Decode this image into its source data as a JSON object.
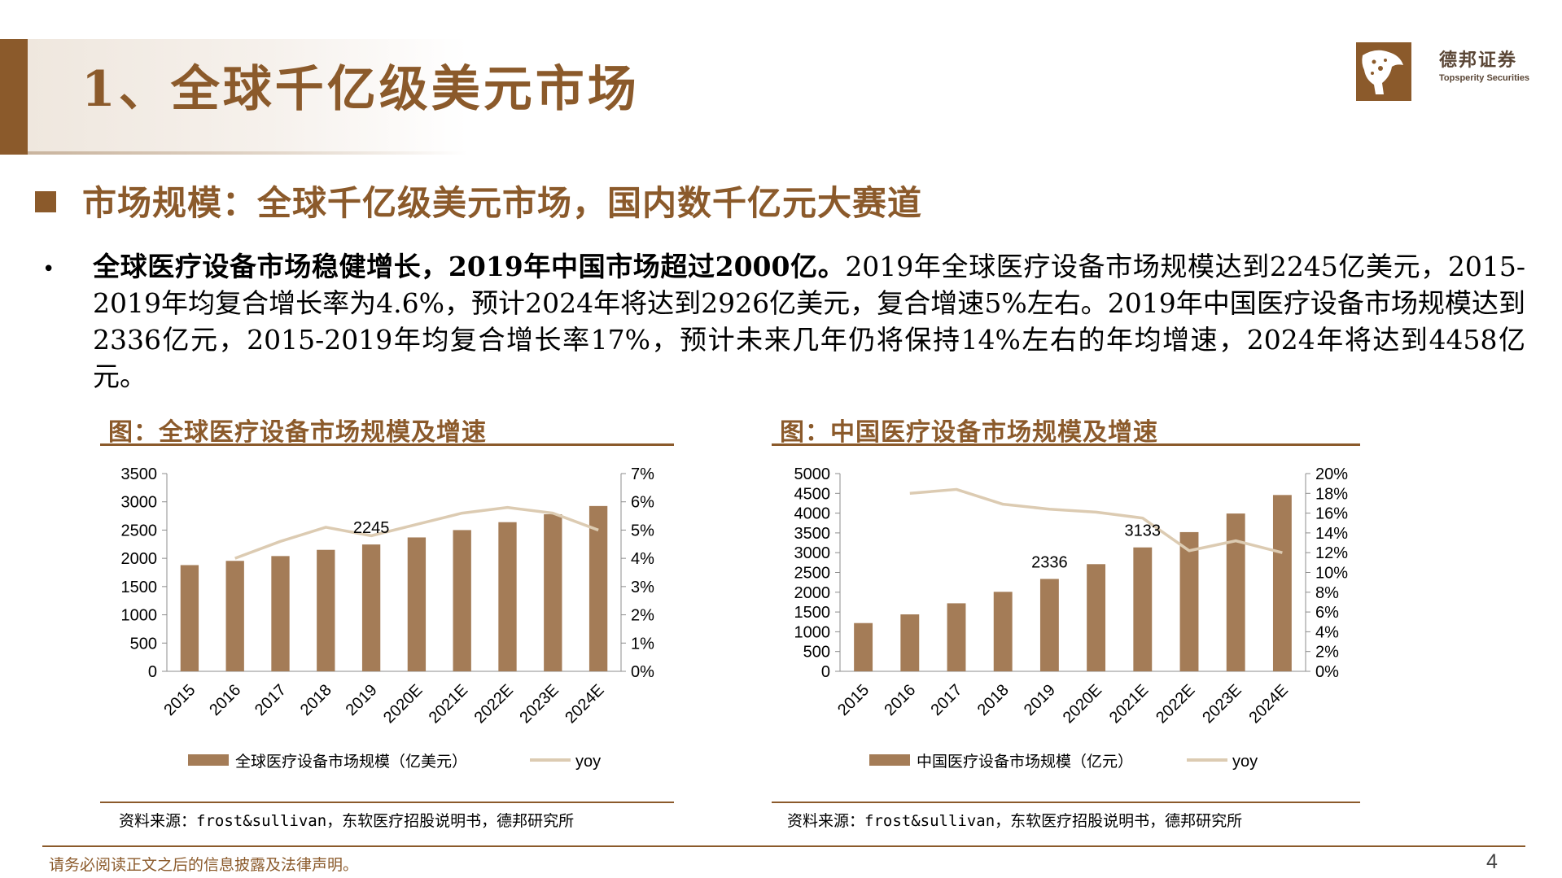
{
  "header": {
    "title": "1、全球千亿级美元市场",
    "logo_cn": "德邦证券",
    "logo_en": "Topsperity Securities"
  },
  "section": {
    "title": "市场规模：全球千亿级美元市场，国内数千亿元大赛道"
  },
  "bullet": {
    "marker": "•",
    "bold": "全球医疗设备市场稳健增长，2019年中国市场超过2000亿。",
    "text": "2019年全球医疗设备市场规模达到2245亿美元，2015-2019年均复合增长率为4.6%，预计2024年将达到2926亿美元，复合增速5%左右。2019年中国医疗设备市场规模达到2336亿元，2015-2019年均复合增长率17%，预计未来几年仍将保持14%左右的年均增速，2024年将达到4458亿元。"
  },
  "chart_data": [
    {
      "type": "bar",
      "title": "图：全球医疗设备市场规模及增速",
      "categories": [
        "2015",
        "2016",
        "2017",
        "2018",
        "2019",
        "2020E",
        "2021E",
        "2022E",
        "2023E",
        "2024E"
      ],
      "series": [
        {
          "name": "全球医疗设备市场规模（亿美元）",
          "type": "bar",
          "axis": "left",
          "values": [
            1880,
            1955,
            2040,
            2150,
            2245,
            2370,
            2500,
            2640,
            2780,
            2926
          ]
        },
        {
          "name": "yoy",
          "type": "line",
          "axis": "right",
          "values": [
            null,
            4.0,
            4.6,
            5.1,
            4.8,
            5.2,
            5.6,
            5.8,
            5.6,
            5.0
          ]
        }
      ],
      "ylim": [
        0,
        3500
      ],
      "yticks": [
        0,
        500,
        1000,
        1500,
        2000,
        2500,
        3000,
        3500
      ],
      "y2lim": [
        0,
        7
      ],
      "y2ticks": [
        "0%",
        "1%",
        "2%",
        "3%",
        "4%",
        "5%",
        "6%",
        "7%"
      ],
      "data_labels": [
        {
          "index": 4,
          "text": "2245"
        }
      ],
      "source": "资料来源：frost&sullivan，东软医疗招股说明书，德邦研究所",
      "legend": "bottom"
    },
    {
      "type": "bar",
      "title": "图：中国医疗设备市场规模及增速",
      "categories": [
        "2015",
        "2016",
        "2017",
        "2018",
        "2019",
        "2020E",
        "2021E",
        "2022E",
        "2023E",
        "2024E"
      ],
      "series": [
        {
          "name": "中国医疗设备市场规模（亿元）",
          "type": "bar",
          "axis": "left",
          "values": [
            1220,
            1440,
            1720,
            2010,
            2336,
            2710,
            3133,
            3520,
            3990,
            4458
          ]
        },
        {
          "name": "yoy",
          "type": "line",
          "axis": "right",
          "values": [
            null,
            18.0,
            18.4,
            16.9,
            16.4,
            16.1,
            15.5,
            12.2,
            13.2,
            12.0
          ]
        }
      ],
      "ylim": [
        0,
        5000
      ],
      "yticks": [
        0,
        500,
        1000,
        1500,
        2000,
        2500,
        3000,
        3500,
        4000,
        4500,
        5000
      ],
      "y2lim": [
        0,
        20
      ],
      "y2ticks": [
        "0%",
        "2%",
        "4%",
        "6%",
        "8%",
        "10%",
        "12%",
        "14%",
        "16%",
        "18%",
        "20%"
      ],
      "data_labels": [
        {
          "index": 4,
          "text": "2336"
        },
        {
          "index": 6,
          "text": "3133"
        }
      ],
      "source": "资料来源：frost&sullivan，东软医疗招股说明书，德邦研究所",
      "legend": "bottom"
    }
  ],
  "colors": {
    "brand": "#8b5a2b",
    "bar": "#a47c57",
    "line": "#dccbb2"
  },
  "footer": {
    "disclaimer": "请务必阅读正文之后的信息披露及法律声明。",
    "page": "4"
  }
}
